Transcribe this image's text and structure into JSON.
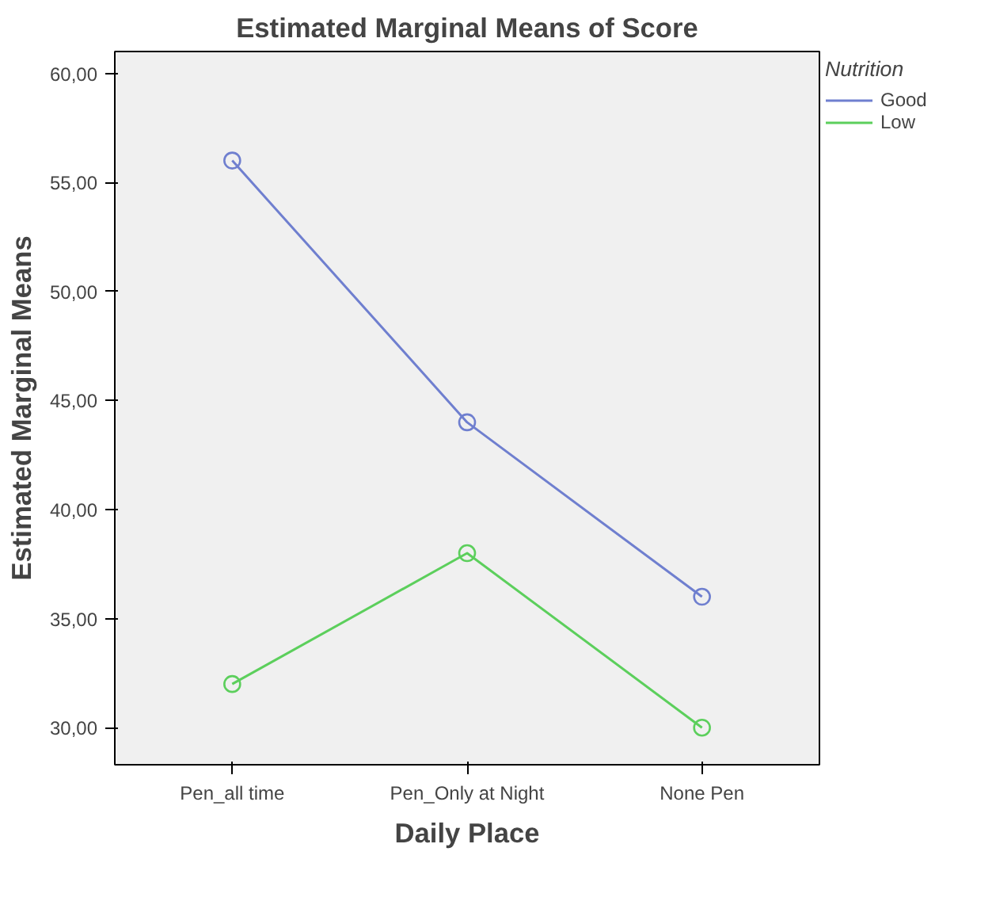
{
  "chart_data": {
    "type": "line",
    "title": "Estimated Marginal Means of Score",
    "xlabel": "Daily Place",
    "ylabel": "Estimated Marginal Means",
    "legend_title": "Nutrition",
    "categories": [
      "Pen_all time",
      "Pen_Only at Night",
      "None Pen"
    ],
    "series": [
      {
        "name": "Good",
        "color": "#6f7fcf",
        "values": [
          56,
          44,
          36
        ]
      },
      {
        "name": "Low",
        "color": "#5ccf5c",
        "values": [
          32,
          38,
          30
        ]
      }
    ],
    "ylim": [
      28.3,
      61
    ],
    "yticks": [
      {
        "value": 30,
        "label": "30,00"
      },
      {
        "value": 35,
        "label": "35,00"
      },
      {
        "value": 40,
        "label": "40,00"
      },
      {
        "value": 45,
        "label": "45,00"
      },
      {
        "value": 50,
        "label": "50,00"
      },
      {
        "value": 55,
        "label": "55,00"
      },
      {
        "value": 60,
        "label": "60,00"
      }
    ],
    "grid": false,
    "legend": "top right",
    "marker": "circle",
    "line_style": "solid"
  }
}
